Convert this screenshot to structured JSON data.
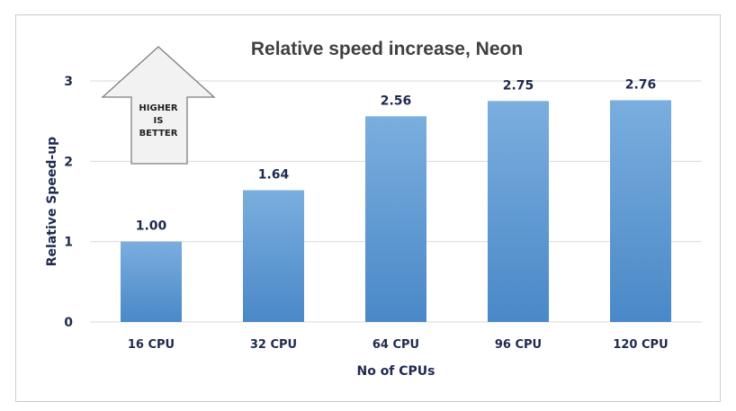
{
  "chart_data": {
    "type": "bar",
    "title": "Relative speed increase, Neon",
    "xlabel": "No of CPUs",
    "ylabel": "Relative Speed-up",
    "categories": [
      "16 CPU",
      "32 CPU",
      "64 CPU",
      "96 CPU",
      "120 CPU"
    ],
    "values": [
      1.0,
      1.64,
      2.56,
      2.75,
      2.76
    ],
    "data_labels": [
      "1.00",
      "1.64",
      "2.56",
      "2.75",
      "2.76"
    ],
    "ylim": [
      0,
      3
    ],
    "yticks": [
      "0",
      "1",
      "2",
      "3"
    ],
    "grid": true,
    "legend": "none",
    "bar_color_top": "#7aaede",
    "bar_color_bottom": "#4a88c8",
    "grid_color": "#d9d9d9"
  },
  "annotation": {
    "icon": "up-arrow-icon",
    "lines": [
      "HIGHER",
      "IS",
      "BETTER"
    ]
  }
}
